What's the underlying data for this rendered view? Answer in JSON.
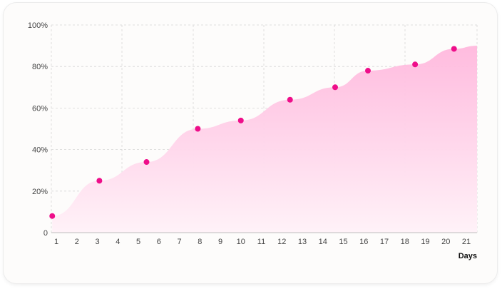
{
  "chart_data": {
    "type": "area",
    "xlabel": "Days",
    "ylabel": "",
    "x_ticks": [
      "1",
      "2",
      "3",
      "4",
      "5",
      "6",
      "7",
      "8",
      "9",
      "10",
      "11",
      "12",
      "13",
      "14",
      "15",
      "16",
      "17",
      "18",
      "19",
      "20",
      "21"
    ],
    "y_ticks": [
      "0",
      "20%",
      "40%",
      "60%",
      "80%",
      "100%"
    ],
    "xlim": [
      0.8,
      21.5
    ],
    "ylim": [
      0,
      100
    ],
    "grid": true,
    "series": [
      {
        "points": [
          {
            "x": 0.8,
            "y": 8
          },
          {
            "x": 3.1,
            "y": 25
          },
          {
            "x": 5.4,
            "y": 34
          },
          {
            "x": 7.9,
            "y": 50
          },
          {
            "x": 10.0,
            "y": 54
          },
          {
            "x": 12.4,
            "y": 64
          },
          {
            "x": 14.6,
            "y": 70
          },
          {
            "x": 16.2,
            "y": 78
          },
          {
            "x": 18.5,
            "y": 81
          },
          {
            "x": 20.4,
            "y": 88.5
          }
        ]
      }
    ],
    "colors": {
      "marker": "#ee0e8a",
      "area_top": "#ffb8dd",
      "area_bottom": "#fff2f8",
      "grid": "#d6d6d6"
    }
  }
}
